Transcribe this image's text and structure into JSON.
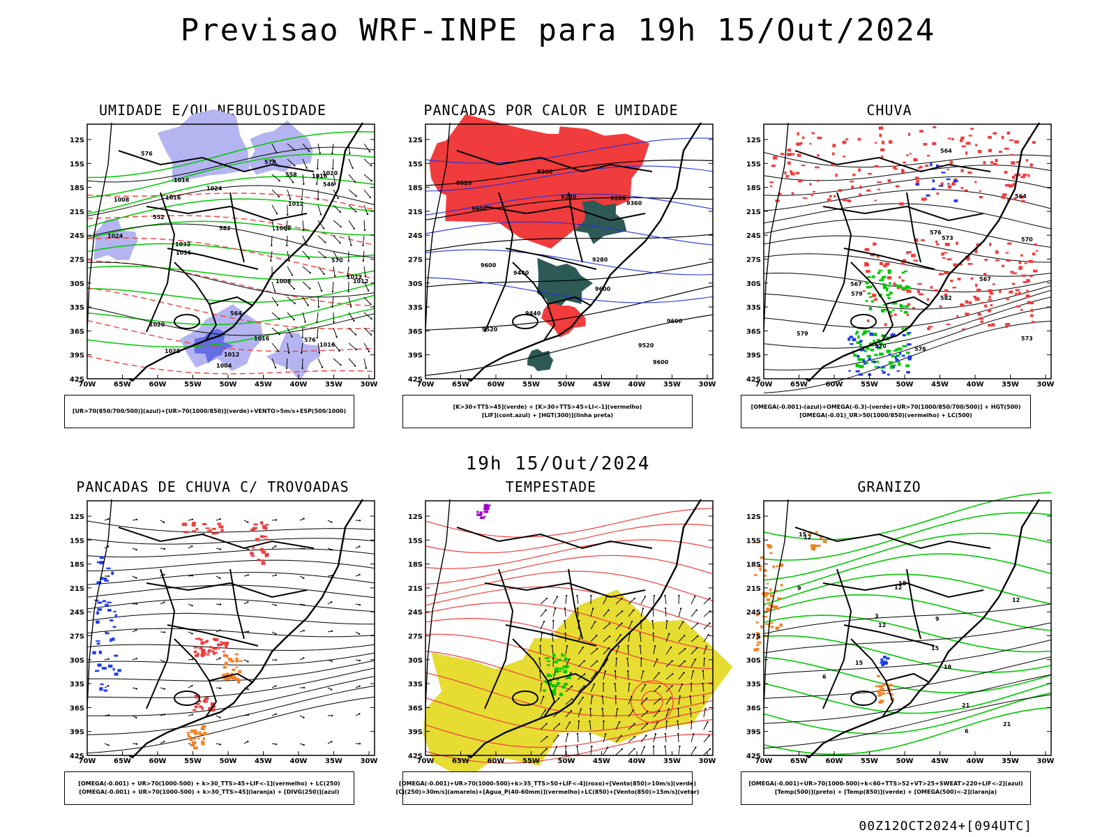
{
  "title": "Previsao WRF-INPE  para 19h 15/Out/2024",
  "row_title": "19h 15/Out/2024",
  "footer": "00Z12OCT2024+[094UTC]",
  "axes": {
    "lat_labels": [
      "12S",
      "15S",
      "18S",
      "21S",
      "24S",
      "27S",
      "30S",
      "33S",
      "36S",
      "39S",
      "42S"
    ],
    "lon_labels": [
      "70W",
      "65W",
      "60W",
      "55W",
      "50W",
      "45W",
      "40W",
      "35W",
      "30W"
    ]
  },
  "colors": {
    "humid_blue": "#b4b4f0",
    "contour_green": "#00c800",
    "contour_red": "#f03c3c",
    "heat_red": "#f03c3c",
    "dark_teal": "#2e5a56",
    "storm_yellow": "#e6dc32",
    "orange": "#f08228",
    "blue": "#1e3cf0",
    "purple": "#a000c8"
  },
  "panels": [
    {
      "title": "UMIDADE E/OU NEBULOSIDADE",
      "legend": [
        "[UR>70(850/700/500)](azul)+[UR>70(1000/850)](verde)+VENTO>5m/s+ESP(500/1000)"
      ],
      "contour_labels": [
        "1008",
        "1016",
        "1008",
        "1012",
        "1016",
        "1004",
        "1008",
        "1016",
        "1020",
        "1012",
        "1012",
        "1016",
        "1012",
        "1020",
        "1024",
        "1028",
        "1032",
        "1024",
        "1016",
        "1016",
        "576",
        "570",
        "582",
        "564",
        "558",
        "552",
        "546",
        "570",
        "576"
      ]
    },
    {
      "title": "PANCADAS POR CALOR E UMIDADE",
      "legend": [
        "[K>30+TTS>45](verde) + [K>30+TTS>45+LI<-1](vermelho)",
        "[LIF](cont.azul) + [HGT(300)](linha preta)"
      ],
      "contour_labels": [
        "9600",
        "9600",
        "9600",
        "9520",
        "9600",
        "9600",
        "9520",
        "9440",
        "9360",
        "9280",
        "9200",
        "9520",
        "9440",
        "9360",
        "9280"
      ]
    },
    {
      "title": "CHUVA",
      "legend": [
        "[OMEGA(-0.001)-(azul)+OMEGA(-0.3)-(verde)+UR>70(1000/850/700/500)] + HGT(500)",
        "[OMEGA(-0.01)_UR>50(1000/850)(vermelho) + LC(500)"
      ],
      "contour_labels": [
        "582",
        "579",
        "576",
        "573",
        "570",
        "567",
        "564",
        "579",
        "576",
        "573",
        "570",
        "567",
        "564"
      ]
    },
    {
      "title": "PANCADAS DE CHUVA C/ TROVOADAS",
      "legend": [
        "[OMEGA(-0.001) + UR>70(1000-500) + k>30_TTS>45+LIF<-1](vermelho) + LC(250)",
        "[OMEGA(-0.001) + UR>70(1000-500) + k>30_TTS>45](laranja) + [DIVG(250)](azul)"
      ],
      "contour_labels": []
    },
    {
      "title": "TEMPESTADE",
      "legend": [
        "[OMEGA(-0.001)+UR>70(1000-500)+k>35_TTS>50+LIF<-4](roxo)+[Vento(850)>10m/s](verde)",
        "[CJ(250)>30m/s](amarelo)+[Agua_P(40-60mm)](vermelho)+LC(850)+[Vento(850)>15m/s](vetor)"
      ],
      "contour_labels": []
    },
    {
      "title": "GRANIZO",
      "legend": [
        "[OMEGA(-0.001)+UR>70(1000-500)+k<60+TTS>52+VT>25+SWEAT>220+LIF<-2](azul)",
        "[Temp(500)](preto) + [Temp(850)](verde) + [OMEGA(500)<-2](laranja)"
      ],
      "contour_labels": [
        "12",
        "9",
        "6",
        "12",
        "15",
        "18",
        "21",
        "15",
        "12",
        "9",
        "6",
        "3",
        "12",
        "15",
        "18",
        "21"
      ]
    }
  ]
}
